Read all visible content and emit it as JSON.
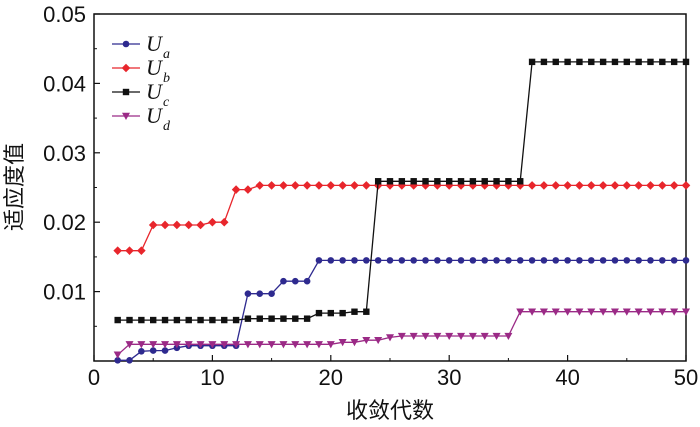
{
  "chart_data": {
    "type": "line",
    "xlabel": "收敛代数",
    "ylabel": "适应度值",
    "xlim": [
      0,
      50
    ],
    "ylim": [
      0,
      0.05
    ],
    "xticks": [
      "0",
      "10",
      "20",
      "30",
      "40",
      "50"
    ],
    "yticks": [
      "0.01",
      "0.02",
      "0.03",
      "0.04",
      "0.05"
    ],
    "legend_position": "top-left",
    "grid": false,
    "x": [
      2,
      3,
      4,
      5,
      6,
      7,
      8,
      9,
      10,
      11,
      12,
      13,
      14,
      15,
      16,
      17,
      18,
      19,
      20,
      21,
      22,
      23,
      24,
      25,
      26,
      27,
      28,
      29,
      30,
      31,
      32,
      33,
      34,
      35,
      36,
      37,
      38,
      39,
      40,
      41,
      42,
      43,
      44,
      45,
      46,
      47,
      48,
      49,
      50
    ],
    "series": [
      {
        "name": "U",
        "subscript": "a",
        "color": "#2e2a8f",
        "marker": "circle",
        "values": [
          0.0001,
          0.0001,
          0.0014,
          0.0015,
          0.0015,
          0.0019,
          0.0022,
          0.0022,
          0.0022,
          0.0022,
          0.0022,
          0.0097,
          0.0097,
          0.0097,
          0.0115,
          0.0115,
          0.0115,
          0.0145,
          0.0145,
          0.0145,
          0.0145,
          0.0145,
          0.0145,
          0.0145,
          0.0145,
          0.0145,
          0.0145,
          0.0145,
          0.0145,
          0.0145,
          0.0145,
          0.0145,
          0.0145,
          0.0145,
          0.0145,
          0.0145,
          0.0145,
          0.0145,
          0.0145,
          0.0145,
          0.0145,
          0.0145,
          0.0145,
          0.0145,
          0.0145,
          0.0145,
          0.0145,
          0.0145,
          0.0145
        ]
      },
      {
        "name": "U",
        "subscript": "b",
        "color": "#e8262c",
        "marker": "diamond",
        "values": [
          0.0159,
          0.0159,
          0.0159,
          0.0196,
          0.0196,
          0.0196,
          0.0196,
          0.0196,
          0.02,
          0.02,
          0.0247,
          0.0247,
          0.0253,
          0.0253,
          0.0253,
          0.0253,
          0.0253,
          0.0253,
          0.0253,
          0.0253,
          0.0253,
          0.0253,
          0.0253,
          0.0253,
          0.0253,
          0.0253,
          0.0253,
          0.0253,
          0.0253,
          0.0253,
          0.0253,
          0.0253,
          0.0253,
          0.0253,
          0.0253,
          0.0253,
          0.0253,
          0.0253,
          0.0253,
          0.0253,
          0.0253,
          0.0253,
          0.0253,
          0.0253,
          0.0253,
          0.0253,
          0.0253,
          0.0253,
          0.0253
        ]
      },
      {
        "name": "U",
        "subscript": "c",
        "color": "#111111",
        "marker": "square",
        "values": [
          0.0059,
          0.0059,
          0.0059,
          0.0059,
          0.0059,
          0.0059,
          0.0059,
          0.0059,
          0.0059,
          0.0059,
          0.0059,
          0.0061,
          0.0061,
          0.0061,
          0.0061,
          0.0061,
          0.0061,
          0.0069,
          0.0069,
          0.0069,
          0.0071,
          0.0071,
          0.0259,
          0.0259,
          0.0259,
          0.0259,
          0.0259,
          0.0259,
          0.0259,
          0.0259,
          0.0259,
          0.0259,
          0.0259,
          0.0259,
          0.0259,
          0.0431,
          0.0431,
          0.0431,
          0.0431,
          0.0431,
          0.0431,
          0.0431,
          0.0431,
          0.0431,
          0.0431,
          0.0431,
          0.0431,
          0.0431,
          0.0431
        ]
      },
      {
        "name": "U",
        "subscript": "d",
        "color": "#9b2a86",
        "marker": "triangle-down",
        "values": [
          0.0009,
          0.0024,
          0.0024,
          0.0024,
          0.0024,
          0.0024,
          0.0024,
          0.0024,
          0.0024,
          0.0024,
          0.0024,
          0.0024,
          0.0024,
          0.0024,
          0.0024,
          0.0024,
          0.0024,
          0.0024,
          0.0024,
          0.0027,
          0.0027,
          0.003,
          0.003,
          0.0034,
          0.0036,
          0.0036,
          0.0036,
          0.0036,
          0.0036,
          0.0036,
          0.0036,
          0.0036,
          0.0036,
          0.0036,
          0.0071,
          0.0071,
          0.0071,
          0.0071,
          0.0071,
          0.0071,
          0.0071,
          0.0071,
          0.0071,
          0.0071,
          0.0071,
          0.0071,
          0.0071,
          0.0071,
          0.0071
        ]
      }
    ]
  }
}
